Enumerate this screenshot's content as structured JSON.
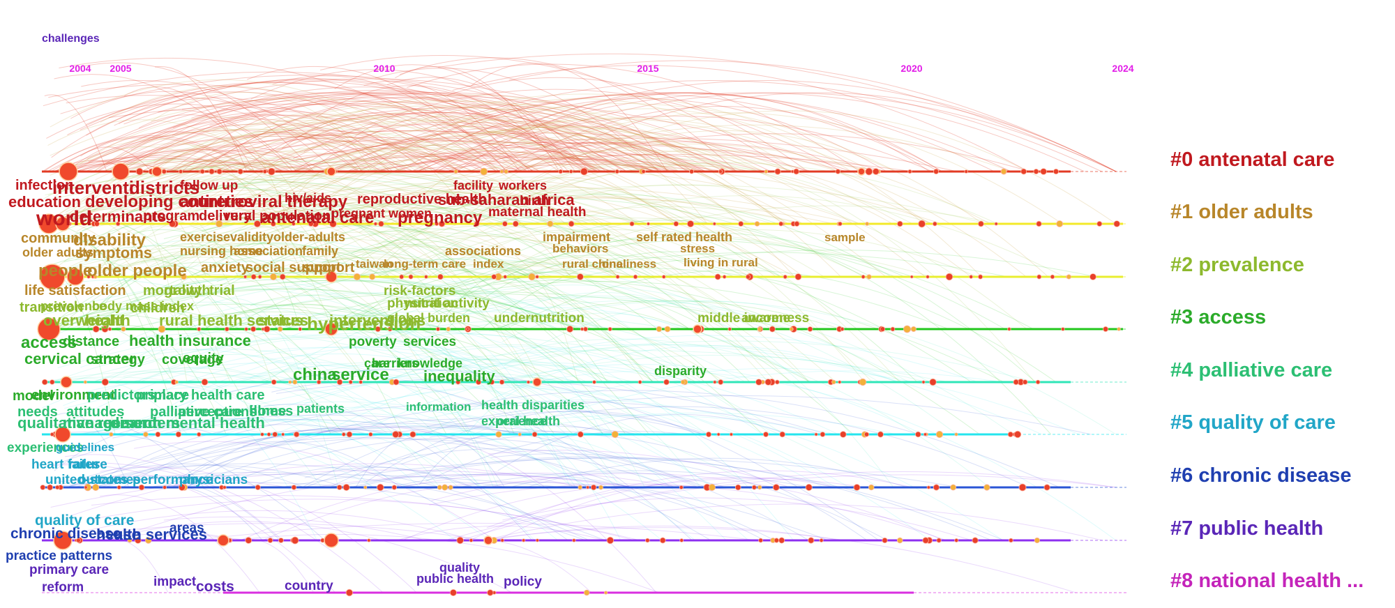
{
  "years": [
    "2004",
    "2005",
    "2010",
    "2015",
    "2020",
    "2024"
  ],
  "clusters": [
    {
      "label": "#0 antenatal care",
      "color": "#c0191f",
      "line_color": "#e23b24"
    },
    {
      "label": "#1 older adults",
      "color": "#b8862a",
      "line_color": "#f3ea28"
    },
    {
      "label": "#2 prevalence",
      "color": "#8db92e",
      "line_color": "#e9ee30"
    },
    {
      "label": "#3 access",
      "color": "#2bab2a",
      "line_color": "#22c71c"
    },
    {
      "label": "#4 palliative care",
      "color": "#2cbf73",
      "line_color": "#2fe6b8"
    },
    {
      "label": "#5 quality of care",
      "color": "#21a6c7",
      "line_color": "#25e5ee"
    },
    {
      "label": "#6 chronic disease",
      "color": "#1f3fb0",
      "line_color": "#2a55d6"
    },
    {
      "label": "#7 public health",
      "color": "#5a26b7",
      "line_color": "#8d2ff0"
    },
    {
      "label": "#8 national health ...",
      "color": "#c424ba",
      "line_color": "#d92fe0"
    }
  ],
  "keywords": [
    {
      "t": "infection",
      "c": 0
    },
    {
      "t": "interventi",
      "c": 0
    },
    {
      "t": "districts",
      "c": 0
    },
    {
      "t": "follow up",
      "c": 0
    },
    {
      "t": "facility",
      "c": 0
    },
    {
      "t": "workers",
      "c": 0
    },
    {
      "t": "education",
      "c": 0
    },
    {
      "t": "developing countries",
      "c": 0
    },
    {
      "t": "antiretroviral therapy",
      "c": 0
    },
    {
      "t": "hiv/aids",
      "c": 0
    },
    {
      "t": "reproductive health",
      "c": 0
    },
    {
      "t": "sub-saharan africa",
      "c": 0
    },
    {
      "t": "birth",
      "c": 0
    },
    {
      "t": "world",
      "c": 0
    },
    {
      "t": "determinants",
      "c": 0
    },
    {
      "t": "program",
      "c": 0
    },
    {
      "t": "delivery",
      "c": 0
    },
    {
      "t": "rural population",
      "c": 0
    },
    {
      "t": "antenatal care",
      "c": 0
    },
    {
      "t": "pregnant women",
      "c": 0
    },
    {
      "t": "pregnancy",
      "c": 0
    },
    {
      "t": "maternal health",
      "c": 0
    },
    {
      "t": "community",
      "c": 1
    },
    {
      "t": "disability",
      "c": 1
    },
    {
      "t": "exercise",
      "c": 1
    },
    {
      "t": "validity",
      "c": 1
    },
    {
      "t": "older-adults",
      "c": 1
    },
    {
      "t": "impairment",
      "c": 1
    },
    {
      "t": "self rated health",
      "c": 1
    },
    {
      "t": "sample",
      "c": 1
    },
    {
      "t": "older adults",
      "c": 1
    },
    {
      "t": "symptoms",
      "c": 1
    },
    {
      "t": "nursing home",
      "c": 1
    },
    {
      "t": "association",
      "c": 1
    },
    {
      "t": "family",
      "c": 1
    },
    {
      "t": "associations",
      "c": 1
    },
    {
      "t": "behaviors",
      "c": 1
    },
    {
      "t": "stress",
      "c": 1
    },
    {
      "t": "people",
      "c": 1
    },
    {
      "t": "older people",
      "c": 1
    },
    {
      "t": "anxiety",
      "c": 1
    },
    {
      "t": "social support",
      "c": 1
    },
    {
      "t": "support",
      "c": 1
    },
    {
      "t": "taiwan",
      "c": 1
    },
    {
      "t": "long-term care",
      "c": 1
    },
    {
      "t": "index",
      "c": 1
    },
    {
      "t": "rural china",
      "c": 1
    },
    {
      "t": "loneliness",
      "c": 1
    },
    {
      "t": "living in rural",
      "c": 1
    },
    {
      "t": "life satisfaction",
      "c": 1
    },
    {
      "t": "mortality",
      "c": 2
    },
    {
      "t": "growth",
      "c": 2
    },
    {
      "t": "trial",
      "c": 2
    },
    {
      "t": "risk-factors",
      "c": 2
    },
    {
      "t": "transition",
      "c": 2
    },
    {
      "t": "prevalence",
      "c": 2
    },
    {
      "t": "body mass index",
      "c": 2
    },
    {
      "t": "children",
      "c": 2
    },
    {
      "t": "physical activity",
      "c": 2
    },
    {
      "t": "nutrition",
      "c": 2
    },
    {
      "t": "overweight",
      "c": 2
    },
    {
      "t": "health",
      "c": 2
    },
    {
      "t": "rural health services",
      "c": 2
    },
    {
      "t": "status",
      "c": 2
    },
    {
      "t": "interventions",
      "c": 2
    },
    {
      "t": "global burden",
      "c": 2
    },
    {
      "t": "undernutrition",
      "c": 2
    },
    {
      "t": "middle income",
      "c": 2
    },
    {
      "t": "awareness",
      "c": 2
    },
    {
      "t": "hypertension",
      "c": 2
    },
    {
      "t": "access",
      "c": 3
    },
    {
      "t": "distance",
      "c": 3
    },
    {
      "t": "health insurance",
      "c": 3
    },
    {
      "t": "poverty",
      "c": 3
    },
    {
      "t": "services",
      "c": 3
    },
    {
      "t": "cervical cancer",
      "c": 3
    },
    {
      "t": "strategy",
      "c": 3
    },
    {
      "t": "coverage",
      "c": 3
    },
    {
      "t": "equity",
      "c": 3
    },
    {
      "t": "china",
      "c": 3
    },
    {
      "t": "service",
      "c": 3
    },
    {
      "t": "care",
      "c": 3
    },
    {
      "t": "barriers",
      "c": 3
    },
    {
      "t": "knowledge",
      "c": 3
    },
    {
      "t": "inequality",
      "c": 3
    },
    {
      "t": "disparity",
      "c": 3
    },
    {
      "t": "model",
      "c": 3
    },
    {
      "t": "environment",
      "c": 3
    },
    {
      "t": "predictors",
      "c": 4
    },
    {
      "t": "primary health care",
      "c": 4
    },
    {
      "t": "place",
      "c": 4
    },
    {
      "t": "needs",
      "c": 4
    },
    {
      "t": "attitudes",
      "c": 4
    },
    {
      "t": "palliative care",
      "c": 4
    },
    {
      "t": "perceptions",
      "c": 4
    },
    {
      "t": "illness",
      "c": 4
    },
    {
      "t": "patients",
      "c": 4
    },
    {
      "t": "information",
      "c": 4
    },
    {
      "t": "health disparities",
      "c": 4
    },
    {
      "t": "qualitative research",
      "c": 4
    },
    {
      "t": "management",
      "c": 4
    },
    {
      "t": "disorders",
      "c": 4
    },
    {
      "t": "mental health",
      "c": 4
    },
    {
      "t": "home",
      "c": 4
    },
    {
      "t": "experience",
      "c": 4
    },
    {
      "t": "oral health",
      "c": 4
    },
    {
      "t": "experiences",
      "c": 4
    },
    {
      "t": "guidelines",
      "c": 5
    },
    {
      "t": "heart failure",
      "c": 5
    },
    {
      "t": "rates",
      "c": 5
    },
    {
      "t": "united-states",
      "c": 5
    },
    {
      "t": "outcomes",
      "c": 5
    },
    {
      "t": "performance",
      "c": 5
    },
    {
      "t": "physicians",
      "c": 5
    },
    {
      "t": "quality of care",
      "c": 5
    },
    {
      "t": "areas",
      "c": 6
    },
    {
      "t": "chronic disease",
      "c": 6
    },
    {
      "t": "health services",
      "c": 6
    },
    {
      "t": "use",
      "c": 6
    },
    {
      "t": "practice patterns",
      "c": 6
    },
    {
      "t": "primary care",
      "c": 7
    },
    {
      "t": "quality",
      "c": 7
    },
    {
      "t": "reform",
      "c": 7
    },
    {
      "t": "impact",
      "c": 7
    },
    {
      "t": "costs",
      "c": 7
    },
    {
      "t": "country",
      "c": 7
    },
    {
      "t": "public health",
      "c": 7
    },
    {
      "t": "policy",
      "c": 7
    },
    {
      "t": "challenges",
      "c": 7
    }
  ]
}
